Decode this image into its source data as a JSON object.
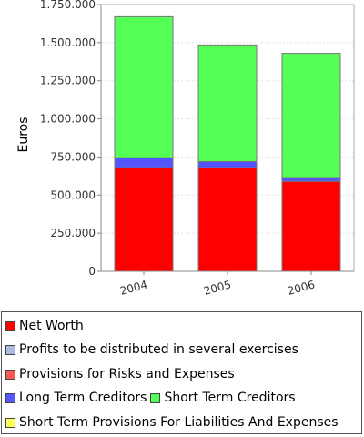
{
  "chart_data": {
    "type": "bar",
    "stacked": true,
    "categories": [
      "2004",
      "2005",
      "2006"
    ],
    "ylabel": "Euros",
    "ylim": [
      0,
      1750000
    ],
    "yticks": [
      0,
      250000,
      500000,
      750000,
      1000000,
      1250000,
      1500000,
      1750000
    ],
    "ytick_labels": [
      "0",
      "250.000",
      "500.000",
      "750.000",
      "1.000.000",
      "1.250.000",
      "1.500.000",
      "1.750.000"
    ],
    "grid": true,
    "legend_position": "bottom",
    "series": [
      {
        "name": "Net Worth",
        "color": "#ff0000",
        "values": [
          680000,
          680000,
          590000
        ]
      },
      {
        "name": "Profits to be distributed in several exercises",
        "color": "#aabbdd",
        "values": [
          0,
          0,
          0
        ]
      },
      {
        "name": "Provisions for Risks and Expenses",
        "color": "#ff5555",
        "values": [
          0,
          0,
          0
        ]
      },
      {
        "name": "Long Term Creditors",
        "color": "#5555ff",
        "values": [
          65000,
          40000,
          25000
        ]
      },
      {
        "name": "Short Term Creditors",
        "color": "#55ff55",
        "values": [
          925000,
          765000,
          815000
        ]
      },
      {
        "name": "Short Term Provisions For Liabilities And Expenses",
        "color": "#ffff55",
        "values": [
          0,
          0,
          0
        ]
      }
    ]
  },
  "legend": {
    "rows": [
      [
        {
          "label": "Net Worth",
          "color": "#ff0000",
          "icon": "net-worth-swatch"
        }
      ],
      [
        {
          "label": "Profits to be distributed in several exercises",
          "color": "#aabbdd",
          "icon": "profits-swatch"
        }
      ],
      [
        {
          "label": "Provisions for Risks and Expenses",
          "color": "#ff5555",
          "icon": "provisions-swatch"
        }
      ],
      [
        {
          "label": "Long Term Creditors",
          "color": "#5555ff",
          "icon": "long-term-swatch"
        },
        {
          "label": "Short Term Creditors",
          "color": "#55ff55",
          "icon": "short-term-swatch"
        }
      ],
      [
        {
          "label": "Short Term Provisions For Liabilities And Expenses",
          "color": "#ffff55",
          "icon": "short-term-provisions-swatch"
        }
      ]
    ]
  }
}
